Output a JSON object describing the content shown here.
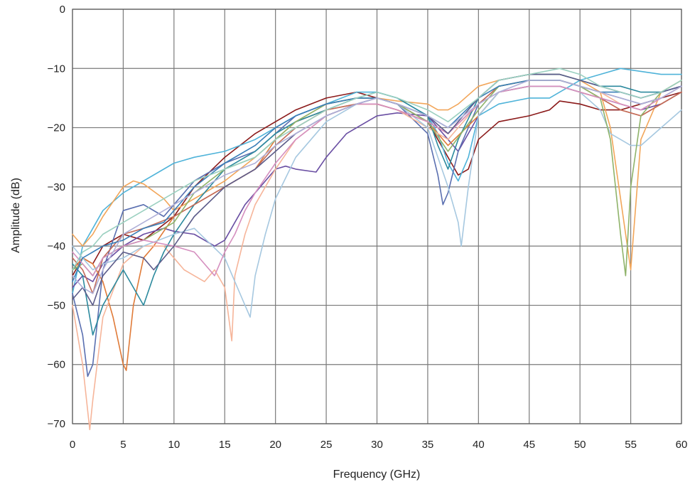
{
  "chart_data": {
    "type": "line",
    "title": "",
    "xlabel": "Frequency (GHz)",
    "ylabel": "Amplitude (dB)",
    "xlim": [
      0,
      60
    ],
    "ylim": [
      -70,
      0
    ],
    "x_ticks": [
      "0",
      "5",
      "10",
      "15",
      "20",
      "25",
      "30",
      "35",
      "40",
      "45",
      "50",
      "55",
      "60"
    ],
    "y_ticks": [
      "0",
      "−10",
      "−20",
      "−30",
      "−40",
      "−50",
      "−60",
      "−70"
    ],
    "grid": true,
    "legend": "none",
    "series": [
      {
        "color": "#8b1a1a",
        "x": [
          0,
          1,
          2,
          3,
          5,
          7,
          10,
          12,
          15,
          18,
          20,
          22,
          25,
          28,
          30,
          32,
          35,
          36,
          37,
          38,
          39,
          40,
          42,
          45,
          47,
          48,
          50,
          52,
          54,
          56,
          58,
          60
        ],
        "y": [
          -45,
          -42,
          -43,
          -40,
          -38,
          -39,
          -35,
          -30,
          -25,
          -21,
          -19,
          -17,
          -15,
          -14,
          -15,
          -16,
          -19,
          -22,
          -25,
          -28,
          -27,
          -22,
          -19,
          -18,
          -17,
          -15.5,
          -16,
          -17,
          -17,
          -16,
          -15,
          -14
        ]
      },
      {
        "color": "#4fb3d9",
        "x": [
          0,
          1,
          2,
          3,
          5,
          7,
          10,
          12,
          15,
          18,
          20,
          22,
          25,
          28,
          30,
          32,
          35,
          36,
          37,
          38,
          39,
          40,
          42,
          45,
          47,
          48,
          50,
          52,
          54,
          56,
          58,
          60
        ],
        "y": [
          -48,
          -40,
          -37,
          -34,
          -31,
          -29,
          -26,
          -25,
          -24,
          -22,
          -20,
          -18,
          -16,
          -14,
          -14,
          -15,
          -18,
          -21,
          -26,
          -29,
          -25,
          -18,
          -16,
          -15,
          -15,
          -14,
          -12,
          -11,
          -10,
          -10.5,
          -11,
          -11
        ]
      },
      {
        "color": "#f2a65a",
        "x": [
          0,
          1,
          2,
          3,
          5,
          6,
          7,
          9,
          10,
          12,
          15,
          18,
          20,
          22,
          25,
          28,
          30,
          32,
          35,
          36,
          37,
          38,
          40,
          42,
          45,
          48,
          50,
          52,
          53,
          54,
          55,
          56,
          58,
          60
        ],
        "y": [
          -38,
          -40,
          -38,
          -35,
          -30,
          -29,
          -29.5,
          -32,
          -34,
          -32,
          -29,
          -25,
          -22,
          -19,
          -16,
          -15,
          -15,
          -15.5,
          -16,
          -17,
          -17,
          -16,
          -13,
          -12,
          -11,
          -11,
          -12,
          -14,
          -20,
          -32,
          -44,
          -22,
          -14,
          -12
        ]
      },
      {
        "color": "#6a4fa3",
        "x": [
          0,
          1,
          2,
          3,
          5,
          7,
          9,
          10,
          12,
          14,
          15,
          16,
          17,
          18,
          20,
          21,
          22,
          24,
          25,
          27,
          30,
          32,
          35,
          36,
          37,
          38,
          40,
          42,
          45,
          48,
          50,
          52,
          54,
          56,
          58,
          60
        ],
        "y": [
          -47,
          -45,
          -46,
          -43,
          -40,
          -38,
          -37,
          -37.5,
          -38,
          -40,
          -39,
          -36,
          -33,
          -31,
          -27,
          -26.5,
          -27,
          -27.5,
          -25,
          -21,
          -18,
          -17.5,
          -18,
          -20,
          -22,
          -24,
          -18,
          -14,
          -13,
          -13,
          -14,
          -15,
          -16,
          -17,
          -16,
          -14
        ]
      },
      {
        "color": "#5a6fb0",
        "x": [
          0,
          1,
          1.5,
          2,
          3,
          5,
          7,
          9,
          10,
          12,
          15,
          18,
          20,
          22,
          25,
          28,
          30,
          32,
          35,
          36,
          36.5,
          37,
          38,
          40,
          42,
          45,
          48,
          50,
          52,
          54,
          56,
          58,
          60
        ],
        "y": [
          -48,
          -55,
          -62,
          -60,
          -44,
          -34,
          -33,
          -35,
          -33,
          -29,
          -26,
          -24,
          -21,
          -18,
          -16,
          -15,
          -15,
          -16,
          -21,
          -28,
          -33,
          -31,
          -24,
          -16,
          -13,
          -12,
          -12,
          -13,
          -14,
          -15,
          -16,
          -15,
          -13
        ]
      },
      {
        "color": "#e07b39",
        "x": [
          0,
          1,
          2,
          3,
          4,
          5,
          5.3,
          6,
          7,
          8,
          10,
          12,
          15,
          18,
          20,
          22,
          25,
          28,
          30,
          32,
          35,
          37,
          40,
          42,
          45,
          48,
          50,
          52,
          54,
          56,
          58,
          60
        ],
        "y": [
          -44,
          -42,
          -43,
          -46,
          -52,
          -60,
          -61,
          -50,
          -42,
          -40,
          -35,
          -33,
          -30,
          -27,
          -22,
          -19,
          -17,
          -16,
          -16,
          -17,
          -19,
          -23,
          -18,
          -14,
          -13,
          -13,
          -14,
          -15,
          -17,
          -18,
          -16,
          -14
        ]
      },
      {
        "color": "#f6b59a",
        "x": [
          0,
          1,
          1.7,
          2,
          3,
          5,
          7,
          9,
          10,
          11,
          12,
          13,
          14,
          15,
          15.7,
          16,
          17,
          18,
          20,
          22,
          25,
          28,
          30,
          32,
          35,
          37,
          40,
          42,
          45,
          48,
          50,
          52,
          54,
          56,
          58,
          60
        ],
        "y": [
          -50,
          -60,
          -71,
          -66,
          -52,
          -43,
          -40,
          -40,
          -42,
          -44,
          -45,
          -46,
          -44,
          -47,
          -56,
          -45,
          -38,
          -33,
          -27,
          -22,
          -18,
          -16,
          -16,
          -17,
          -20,
          -22,
          -16,
          -13,
          -12,
          -12,
          -13,
          -14,
          -16,
          -17,
          -15,
          -13
        ]
      },
      {
        "color": "#2c8a9e",
        "x": [
          0,
          1,
          2,
          3,
          5,
          6,
          7,
          8,
          9,
          10,
          12,
          15,
          18,
          20,
          22,
          25,
          28,
          30,
          32,
          35,
          36,
          37,
          38,
          40,
          42,
          45,
          48,
          50,
          52,
          54,
          56,
          58,
          60
        ],
        "y": [
          -43,
          -45,
          -55,
          -50,
          -44,
          -47,
          -50,
          -45,
          -41,
          -38,
          -33,
          -27,
          -24,
          -21,
          -19,
          -17,
          -15,
          -14,
          -15,
          -18,
          -23,
          -27,
          -22,
          -15,
          -12,
          -11,
          -11,
          -12,
          -13,
          -13,
          -14,
          -14,
          -13
        ]
      },
      {
        "color": "#a6c8e0",
        "x": [
          0,
          1,
          2,
          3,
          5,
          7,
          10,
          12,
          15,
          16,
          17,
          17.5,
          18,
          19,
          20,
          22,
          25,
          28,
          30,
          32,
          35,
          36,
          37,
          38,
          38.3,
          39,
          40,
          42,
          45,
          48,
          50,
          52,
          53,
          54,
          55,
          56,
          58,
          60
        ],
        "y": [
          -40,
          -42,
          -44,
          -43,
          -42,
          -40,
          -38,
          -37,
          -42,
          -46,
          -50,
          -52,
          -45,
          -38,
          -32,
          -25,
          -19,
          -16,
          -15,
          -16,
          -20,
          -25,
          -30,
          -36,
          -40,
          -30,
          -18,
          -14,
          -13,
          -13,
          -14,
          -17,
          -21,
          -22,
          -23,
          -23,
          -20,
          -17
        ]
      },
      {
        "color": "#c26b5a",
        "x": [
          0,
          1,
          2,
          3,
          5,
          7,
          10,
          12,
          15,
          18,
          20,
          22,
          25,
          28,
          30,
          32,
          35,
          37,
          40,
          42,
          45,
          48,
          50,
          52,
          54,
          56,
          58,
          60
        ],
        "y": [
          -42,
          -44,
          -48,
          -42,
          -38,
          -37,
          -35,
          -33,
          -30,
          -27,
          -23,
          -20,
          -17,
          -16,
          -16,
          -17,
          -19,
          -21,
          -16,
          -13,
          -12,
          -12,
          -13,
          -15,
          -17,
          -18,
          -16,
          -14
        ]
      },
      {
        "color": "#8fb36a",
        "x": [
          0,
          1,
          2,
          3,
          5,
          7,
          10,
          12,
          15,
          18,
          20,
          22,
          25,
          28,
          30,
          32,
          35,
          37,
          40,
          42,
          45,
          48,
          50,
          52,
          53,
          54,
          54.5,
          55,
          56,
          58,
          60
        ],
        "y": [
          -44,
          -43,
          -45,
          -42,
          -40,
          -39,
          -36,
          -31,
          -27,
          -25,
          -22,
          -19,
          -16,
          -15,
          -15,
          -16,
          -19,
          -24,
          -17,
          -13,
          -12,
          -12,
          -13,
          -15,
          -22,
          -38,
          -45,
          -30,
          -18,
          -14,
          -12
        ]
      },
      {
        "color": "#3a7fb8",
        "x": [
          0,
          1,
          2,
          3,
          5,
          7,
          9,
          10,
          12,
          15,
          18,
          20,
          22,
          25,
          28,
          30,
          32,
          35,
          37,
          40,
          42,
          45,
          48,
          50,
          52,
          54,
          56,
          58,
          60
        ],
        "y": [
          -46,
          -42,
          -41,
          -40,
          -39,
          -37,
          -36,
          -34,
          -30,
          -26,
          -23,
          -20,
          -18,
          -16,
          -15,
          -15,
          -16,
          -18,
          -20,
          -15,
          -13,
          -12,
          -12,
          -13,
          -14,
          -14,
          -15,
          -14,
          -13
        ]
      },
      {
        "color": "#d58fbf",
        "x": [
          0,
          1,
          2,
          3,
          5,
          7,
          10,
          12,
          13,
          14,
          15,
          16,
          17,
          18,
          20,
          22,
          25,
          28,
          30,
          32,
          35,
          37,
          40,
          42,
          45,
          48,
          50,
          52,
          54,
          56,
          58,
          60
        ],
        "y": [
          -41,
          -43,
          -45,
          -42,
          -40,
          -39,
          -40,
          -41,
          -43,
          -45,
          -41,
          -38,
          -34,
          -31,
          -26,
          -22,
          -18,
          -16,
          -16,
          -17,
          -19,
          -21,
          -16,
          -14,
          -13,
          -13,
          -14,
          -15,
          -16,
          -17,
          -15,
          -13
        ]
      },
      {
        "color": "#5c5c8a",
        "x": [
          0,
          1,
          2,
          3,
          5,
          7,
          8,
          10,
          12,
          15,
          18,
          20,
          22,
          25,
          28,
          30,
          32,
          35,
          37,
          40,
          42,
          45,
          48,
          50,
          52,
          54,
          56,
          58,
          60
        ],
        "y": [
          -49,
          -47,
          -50,
          -45,
          -41,
          -42,
          -44,
          -40,
          -35,
          -30,
          -27,
          -24,
          -21,
          -18,
          -16,
          -15,
          -16,
          -18,
          -21,
          -15,
          -12,
          -11,
          -11,
          -12,
          -13,
          -14,
          -15,
          -14,
          -13
        ]
      },
      {
        "color": "#b0b0d8",
        "x": [
          0,
          1,
          2,
          3,
          5,
          7,
          10,
          12,
          15,
          18,
          20,
          22,
          25,
          28,
          30,
          32,
          35,
          37,
          40,
          42,
          45,
          48,
          50,
          52,
          54,
          56,
          58,
          60
        ],
        "y": [
          -45,
          -47,
          -48,
          -44,
          -38,
          -36,
          -33,
          -31,
          -28,
          -26,
          -23,
          -21,
          -18,
          -16,
          -15,
          -16,
          -18,
          -20,
          -16,
          -14,
          -12,
          -12,
          -13,
          -14,
          -15,
          -16,
          -15,
          -13
        ]
      },
      {
        "color": "#9bd0c0",
        "x": [
          0,
          1,
          2,
          3,
          5,
          7,
          10,
          12,
          15,
          18,
          20,
          22,
          25,
          28,
          30,
          32,
          35,
          37,
          40,
          42,
          45,
          48,
          50,
          52,
          54,
          56,
          58,
          60
        ],
        "y": [
          -44,
          -41,
          -40,
          -38,
          -36,
          -34,
          -31,
          -29,
          -27,
          -25,
          -22,
          -20,
          -17,
          -15,
          -14,
          -15,
          -17,
          -19,
          -15,
          -12,
          -11,
          -10,
          -11,
          -13,
          -14,
          -15,
          -14,
          -12
        ]
      }
    ]
  }
}
